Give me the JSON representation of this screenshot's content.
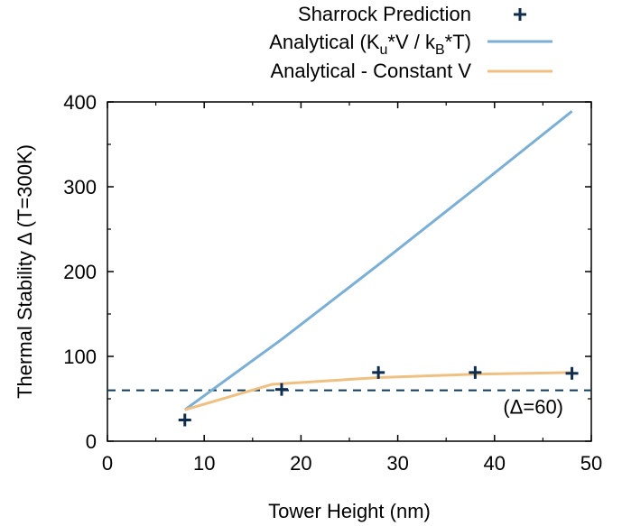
{
  "chart_data": {
    "type": "line",
    "xlabel": "Tower Height (nm)",
    "ylabel": "Thermal Stability Δ (T=300K)",
    "xlim": [
      0,
      50
    ],
    "ylim": [
      0,
      400
    ],
    "xticks": [
      0,
      10,
      20,
      30,
      40,
      50
    ],
    "yticks": [
      0,
      100,
      200,
      300,
      400
    ],
    "xtick_labels": [
      "0",
      "10",
      "20",
      "30",
      "40",
      "50"
    ],
    "ytick_labels": [
      "0",
      "100",
      "200",
      "300",
      "400"
    ],
    "grid": false,
    "legend_position": "top-right",
    "legend": {
      "sharrock_label": "Sharrock Prediction",
      "analytical_prefix": "Analytical (K",
      "analytical_sub_u": "u",
      "analytical_mid": "*V / k",
      "analytical_sub_b": "B",
      "analytical_suffix": "*T)",
      "constant_v_label": "Analytical - Constant V"
    },
    "series": [
      {
        "name": "Sharrock Prediction",
        "style": "marker-plus",
        "color": "#0f2d4e",
        "x": [
          8,
          18,
          28,
          38,
          48
        ],
        "y": [
          25,
          61,
          81,
          81,
          80
        ]
      },
      {
        "name": "Analytical (Ku*V / kB*T)",
        "style": "line",
        "color": "#7bafd6",
        "x": [
          8,
          18,
          28,
          38,
          48
        ],
        "y": [
          37,
          120,
          208,
          298,
          389
        ]
      },
      {
        "name": "Analytical - Constant V",
        "style": "line",
        "color": "#f0c082",
        "x": [
          8,
          17,
          28,
          38,
          48
        ],
        "y": [
          37,
          67,
          75,
          79,
          81
        ]
      }
    ],
    "reference_line": {
      "y": 60,
      "style": "dashed",
      "color": "#0f3b5c",
      "label": "(Δ=60)"
    }
  }
}
